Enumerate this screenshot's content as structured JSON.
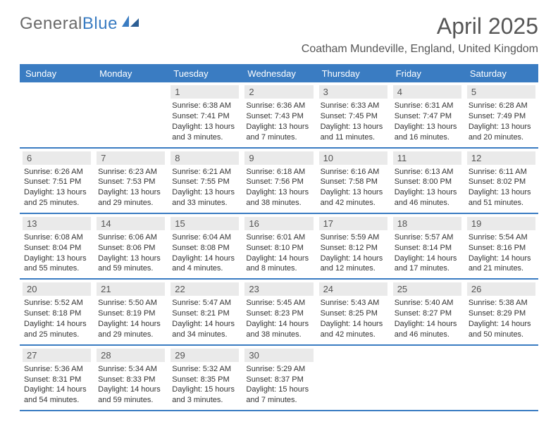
{
  "brand": {
    "name_a": "General",
    "name_b": "Blue"
  },
  "title": "April 2025",
  "location": "Coatham Mundeville, England, United Kingdom",
  "colors": {
    "accent": "#3a7cc2",
    "header_text": "#565656",
    "cell_num_bg": "#eaeaea",
    "body_text": "#333333",
    "logo_gray": "#6a6a6a"
  },
  "days_of_week": [
    "Sunday",
    "Monday",
    "Tuesday",
    "Wednesday",
    "Thursday",
    "Friday",
    "Saturday"
  ],
  "cells": [
    {
      "n": "",
      "sunrise": "",
      "sunset": "",
      "daylight": "",
      "empty": true
    },
    {
      "n": "",
      "sunrise": "",
      "sunset": "",
      "daylight": "",
      "empty": true
    },
    {
      "n": "1",
      "sunrise": "Sunrise: 6:38 AM",
      "sunset": "Sunset: 7:41 PM",
      "daylight": "Daylight: 13 hours and 3 minutes."
    },
    {
      "n": "2",
      "sunrise": "Sunrise: 6:36 AM",
      "sunset": "Sunset: 7:43 PM",
      "daylight": "Daylight: 13 hours and 7 minutes."
    },
    {
      "n": "3",
      "sunrise": "Sunrise: 6:33 AM",
      "sunset": "Sunset: 7:45 PM",
      "daylight": "Daylight: 13 hours and 11 minutes."
    },
    {
      "n": "4",
      "sunrise": "Sunrise: 6:31 AM",
      "sunset": "Sunset: 7:47 PM",
      "daylight": "Daylight: 13 hours and 16 minutes."
    },
    {
      "n": "5",
      "sunrise": "Sunrise: 6:28 AM",
      "sunset": "Sunset: 7:49 PM",
      "daylight": "Daylight: 13 hours and 20 minutes."
    },
    {
      "n": "6",
      "sunrise": "Sunrise: 6:26 AM",
      "sunset": "Sunset: 7:51 PM",
      "daylight": "Daylight: 13 hours and 25 minutes."
    },
    {
      "n": "7",
      "sunrise": "Sunrise: 6:23 AM",
      "sunset": "Sunset: 7:53 PM",
      "daylight": "Daylight: 13 hours and 29 minutes."
    },
    {
      "n": "8",
      "sunrise": "Sunrise: 6:21 AM",
      "sunset": "Sunset: 7:55 PM",
      "daylight": "Daylight: 13 hours and 33 minutes."
    },
    {
      "n": "9",
      "sunrise": "Sunrise: 6:18 AM",
      "sunset": "Sunset: 7:56 PM",
      "daylight": "Daylight: 13 hours and 38 minutes."
    },
    {
      "n": "10",
      "sunrise": "Sunrise: 6:16 AM",
      "sunset": "Sunset: 7:58 PM",
      "daylight": "Daylight: 13 hours and 42 minutes."
    },
    {
      "n": "11",
      "sunrise": "Sunrise: 6:13 AM",
      "sunset": "Sunset: 8:00 PM",
      "daylight": "Daylight: 13 hours and 46 minutes."
    },
    {
      "n": "12",
      "sunrise": "Sunrise: 6:11 AM",
      "sunset": "Sunset: 8:02 PM",
      "daylight": "Daylight: 13 hours and 51 minutes."
    },
    {
      "n": "13",
      "sunrise": "Sunrise: 6:08 AM",
      "sunset": "Sunset: 8:04 PM",
      "daylight": "Daylight: 13 hours and 55 minutes."
    },
    {
      "n": "14",
      "sunrise": "Sunrise: 6:06 AM",
      "sunset": "Sunset: 8:06 PM",
      "daylight": "Daylight: 13 hours and 59 minutes."
    },
    {
      "n": "15",
      "sunrise": "Sunrise: 6:04 AM",
      "sunset": "Sunset: 8:08 PM",
      "daylight": "Daylight: 14 hours and 4 minutes."
    },
    {
      "n": "16",
      "sunrise": "Sunrise: 6:01 AM",
      "sunset": "Sunset: 8:10 PM",
      "daylight": "Daylight: 14 hours and 8 minutes."
    },
    {
      "n": "17",
      "sunrise": "Sunrise: 5:59 AM",
      "sunset": "Sunset: 8:12 PM",
      "daylight": "Daylight: 14 hours and 12 minutes."
    },
    {
      "n": "18",
      "sunrise": "Sunrise: 5:57 AM",
      "sunset": "Sunset: 8:14 PM",
      "daylight": "Daylight: 14 hours and 17 minutes."
    },
    {
      "n": "19",
      "sunrise": "Sunrise: 5:54 AM",
      "sunset": "Sunset: 8:16 PM",
      "daylight": "Daylight: 14 hours and 21 minutes."
    },
    {
      "n": "20",
      "sunrise": "Sunrise: 5:52 AM",
      "sunset": "Sunset: 8:18 PM",
      "daylight": "Daylight: 14 hours and 25 minutes."
    },
    {
      "n": "21",
      "sunrise": "Sunrise: 5:50 AM",
      "sunset": "Sunset: 8:19 PM",
      "daylight": "Daylight: 14 hours and 29 minutes."
    },
    {
      "n": "22",
      "sunrise": "Sunrise: 5:47 AM",
      "sunset": "Sunset: 8:21 PM",
      "daylight": "Daylight: 14 hours and 34 minutes."
    },
    {
      "n": "23",
      "sunrise": "Sunrise: 5:45 AM",
      "sunset": "Sunset: 8:23 PM",
      "daylight": "Daylight: 14 hours and 38 minutes."
    },
    {
      "n": "24",
      "sunrise": "Sunrise: 5:43 AM",
      "sunset": "Sunset: 8:25 PM",
      "daylight": "Daylight: 14 hours and 42 minutes."
    },
    {
      "n": "25",
      "sunrise": "Sunrise: 5:40 AM",
      "sunset": "Sunset: 8:27 PM",
      "daylight": "Daylight: 14 hours and 46 minutes."
    },
    {
      "n": "26",
      "sunrise": "Sunrise: 5:38 AM",
      "sunset": "Sunset: 8:29 PM",
      "daylight": "Daylight: 14 hours and 50 minutes."
    },
    {
      "n": "27",
      "sunrise": "Sunrise: 5:36 AM",
      "sunset": "Sunset: 8:31 PM",
      "daylight": "Daylight: 14 hours and 54 minutes."
    },
    {
      "n": "28",
      "sunrise": "Sunrise: 5:34 AM",
      "sunset": "Sunset: 8:33 PM",
      "daylight": "Daylight: 14 hours and 59 minutes."
    },
    {
      "n": "29",
      "sunrise": "Sunrise: 5:32 AM",
      "sunset": "Sunset: 8:35 PM",
      "daylight": "Daylight: 15 hours and 3 minutes."
    },
    {
      "n": "30",
      "sunrise": "Sunrise: 5:29 AM",
      "sunset": "Sunset: 8:37 PM",
      "daylight": "Daylight: 15 hours and 7 minutes."
    },
    {
      "n": "",
      "sunrise": "",
      "sunset": "",
      "daylight": "",
      "empty": true
    },
    {
      "n": "",
      "sunrise": "",
      "sunset": "",
      "daylight": "",
      "empty": true
    },
    {
      "n": "",
      "sunrise": "",
      "sunset": "",
      "daylight": "",
      "empty": true
    }
  ]
}
